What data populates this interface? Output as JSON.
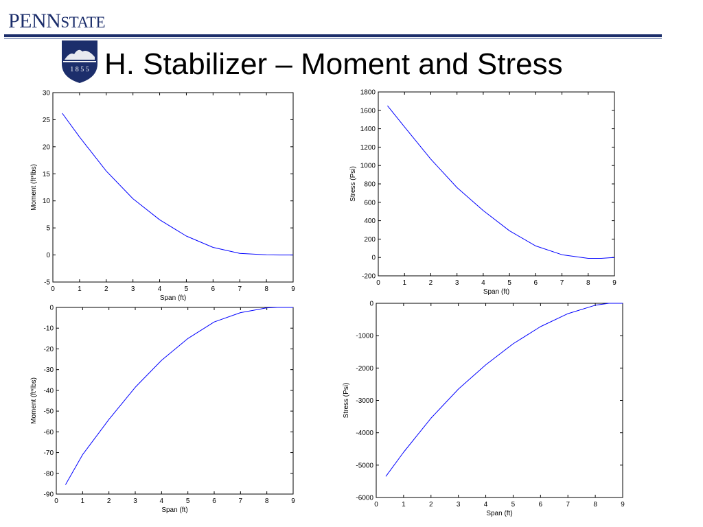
{
  "header": {
    "brand_prefix": "PENN",
    "brand_suffix": "STATE",
    "shield_year": "1 8 5 5",
    "title": "H. Stabilizer – Moment and Stress"
  },
  "colors": {
    "brand": "#1c2e6b",
    "line": "#0000ff",
    "axes": "#000000"
  },
  "chart_data": [
    {
      "type": "line",
      "xlabel": "Span (ft)",
      "ylabel": "Moment (ft*lbs)",
      "xlim": [
        0,
        9
      ],
      "ylim": [
        -5,
        30
      ],
      "xticks": [
        0,
        1,
        2,
        3,
        4,
        5,
        6,
        7,
        8,
        9
      ],
      "yticks": [
        -5,
        0,
        5,
        10,
        15,
        20,
        25,
        30
      ],
      "grid": false,
      "series": [
        {
          "x": [
            0.35,
            1,
            2,
            3,
            4,
            5,
            6,
            7,
            8,
            8.5,
            9
          ],
          "y": [
            26.2,
            21.8,
            15.5,
            10.4,
            6.5,
            3.5,
            1.4,
            0.3,
            0.02,
            0,
            0
          ]
        }
      ]
    },
    {
      "type": "line",
      "xlabel": "Span (ft)",
      "ylabel": "Stress (Psi)",
      "xlim": [
        0,
        9
      ],
      "ylim": [
        -200,
        1800
      ],
      "xticks": [
        0,
        1,
        2,
        3,
        4,
        5,
        6,
        7,
        8,
        9
      ],
      "yticks": [
        -200,
        0,
        200,
        400,
        600,
        800,
        1000,
        1200,
        1400,
        1600,
        1800
      ],
      "grid": false,
      "series": [
        {
          "x": [
            0.35,
            1,
            2,
            3,
            4,
            5,
            6,
            7,
            8,
            8.5,
            9
          ],
          "y": [
            1650,
            1420,
            1070,
            760,
            510,
            290,
            125,
            30,
            -10,
            -10,
            0
          ]
        }
      ]
    },
    {
      "type": "line",
      "xlabel": "Span (ft)",
      "ylabel": "Moment (ft*lbs)",
      "xlim": [
        0,
        9
      ],
      "ylim": [
        -90,
        0
      ],
      "xticks": [
        0,
        1,
        2,
        3,
        4,
        5,
        6,
        7,
        8,
        9
      ],
      "yticks": [
        -90,
        -80,
        -70,
        -60,
        -50,
        -40,
        -30,
        -20,
        -10,
        0
      ],
      "grid": false,
      "series": [
        {
          "x": [
            0.35,
            1,
            2,
            3,
            4,
            5,
            6,
            7,
            8,
            8.4,
            9
          ],
          "y": [
            -85.5,
            -71,
            -54,
            -38.5,
            -25.5,
            -15,
            -7,
            -2.5,
            -0.2,
            0,
            0
          ]
        }
      ]
    },
    {
      "type": "line",
      "xlabel": "Span (ft)",
      "ylabel": "Stress (Psi)",
      "xlim": [
        0,
        9
      ],
      "ylim": [
        -6000,
        0
      ],
      "xticks": [
        0,
        1,
        2,
        3,
        4,
        5,
        6,
        7,
        8,
        9
      ],
      "yticks": [
        -6000,
        -5000,
        -4000,
        -3000,
        -2000,
        -1000,
        0
      ],
      "grid": false,
      "series": [
        {
          "x": [
            0.35,
            1,
            2,
            3,
            4,
            5,
            6,
            7,
            8,
            8.5,
            9
          ],
          "y": [
            -5350,
            -4600,
            -3550,
            -2650,
            -1900,
            -1250,
            -720,
            -320,
            -60,
            0,
            0
          ]
        }
      ]
    }
  ]
}
